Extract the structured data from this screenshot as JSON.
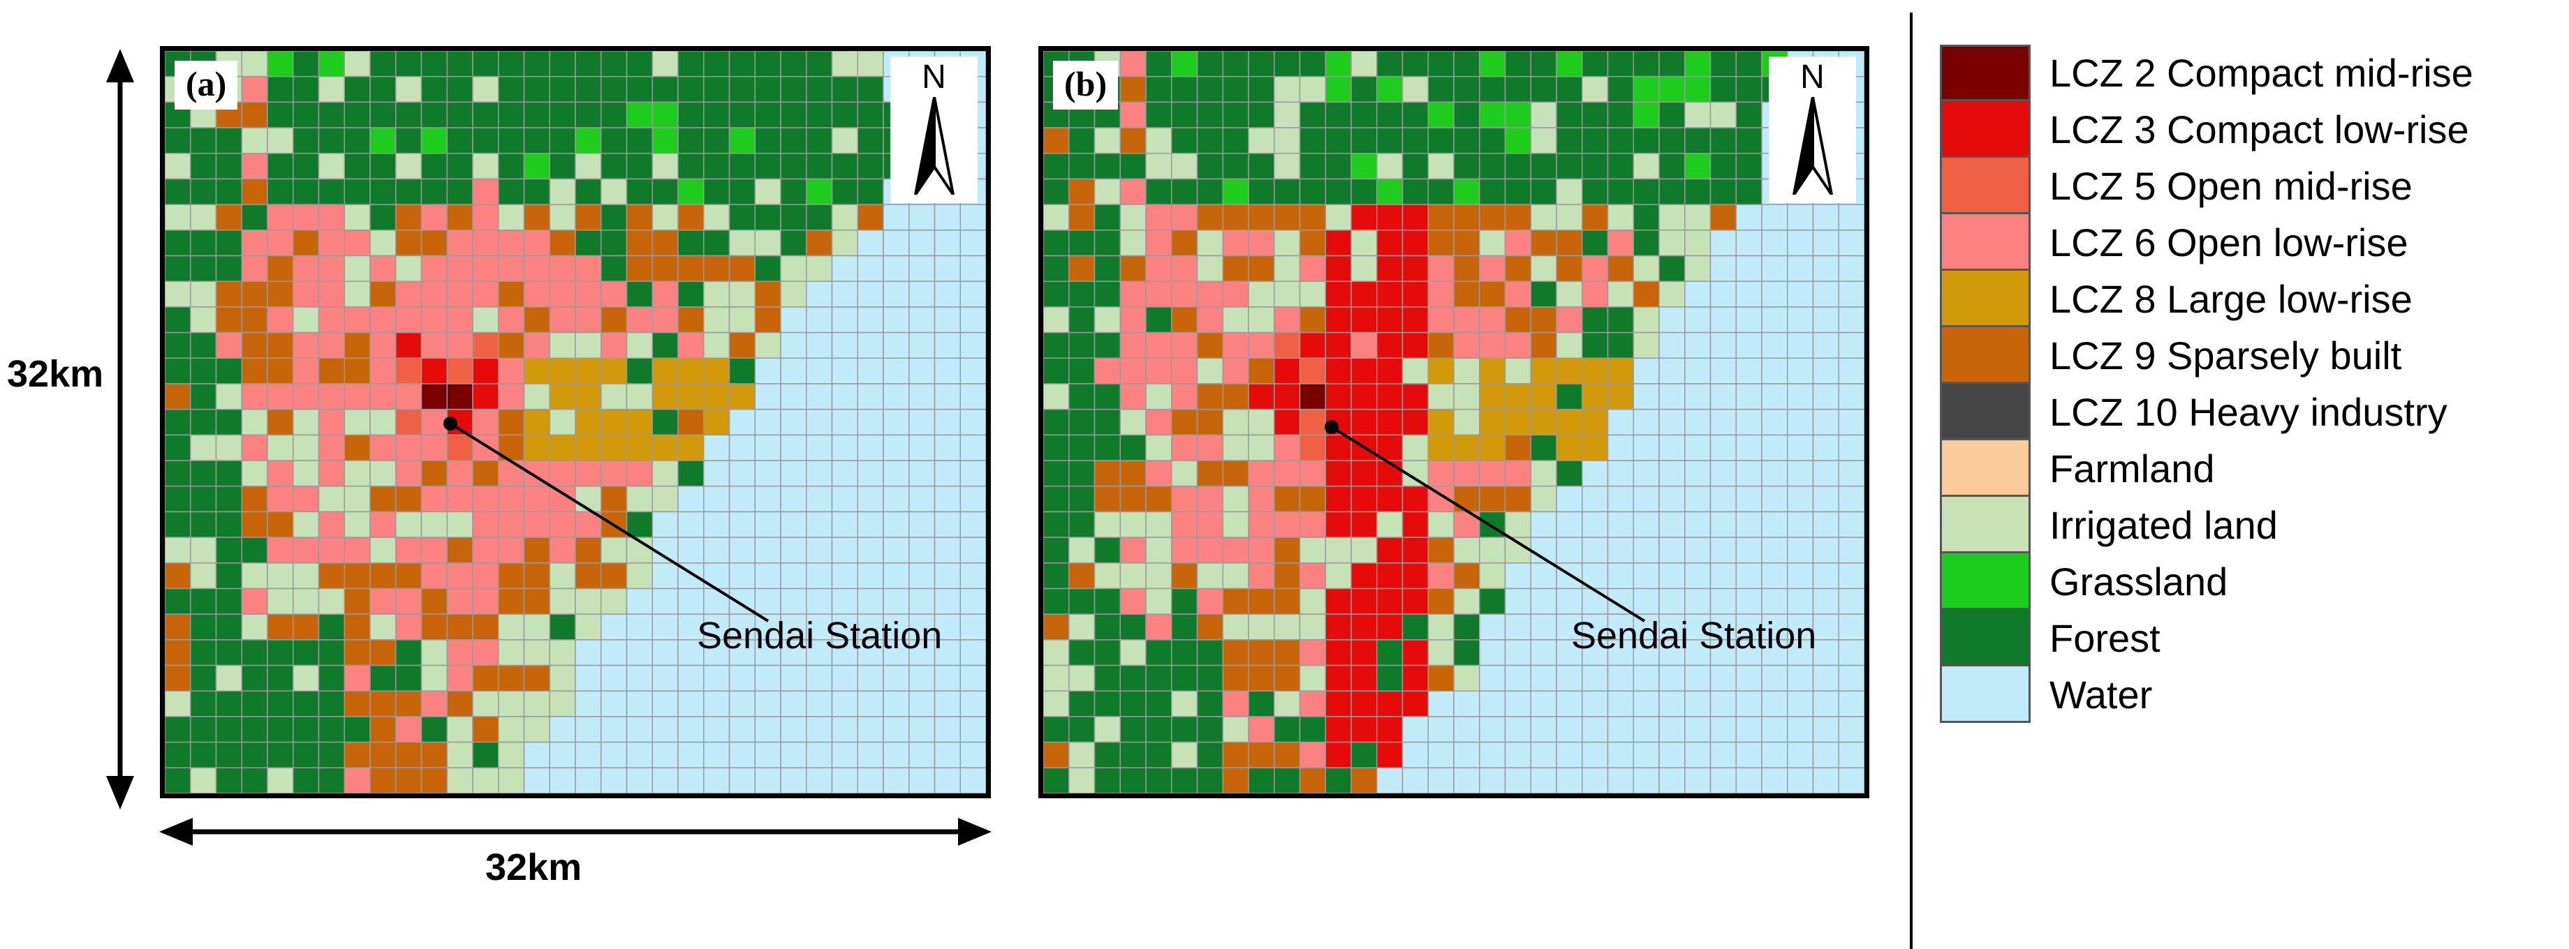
{
  "panels": [
    {
      "tag": "(a)",
      "north": "N",
      "station_label": "Sendai Station"
    },
    {
      "tag": "(b)",
      "north": "N",
      "station_label": "Sendai Station"
    }
  ],
  "scale": {
    "vertical": "32km",
    "horizontal": "32km"
  },
  "grid": {
    "cols": 32,
    "rows": 29,
    "line_color": "#9a9a9a"
  },
  "legend": [
    {
      "label": "LCZ 2 Compact mid-rise",
      "color": "#7a0000"
    },
    {
      "label": "LCZ 3 Compact low-rise",
      "color": "#e60b0b"
    },
    {
      "label": "LCZ 5 Open mid-rise",
      "color": "#f06044"
    },
    {
      "label": "LCZ 6 Open low-rise",
      "color": "#fc8282"
    },
    {
      "label": "LCZ 8 Large low-rise",
      "color": "#d29a0b"
    },
    {
      "label": "LCZ 9 Sparsely built",
      "color": "#c8650b"
    },
    {
      "label": "LCZ 10 Heavy industry",
      "color": "#464646"
    },
    {
      "label": "Farmland",
      "color": "#fccb9c"
    },
    {
      "label": "Irrigated land",
      "color": "#c6e2b6"
    },
    {
      "label": "Grassland",
      "color": "#1ecc1e"
    },
    {
      "label": "Forest",
      "color": "#0e7a2a"
    },
    {
      "label": "Water",
      "color": "#c2ebfa"
    }
  ]
}
